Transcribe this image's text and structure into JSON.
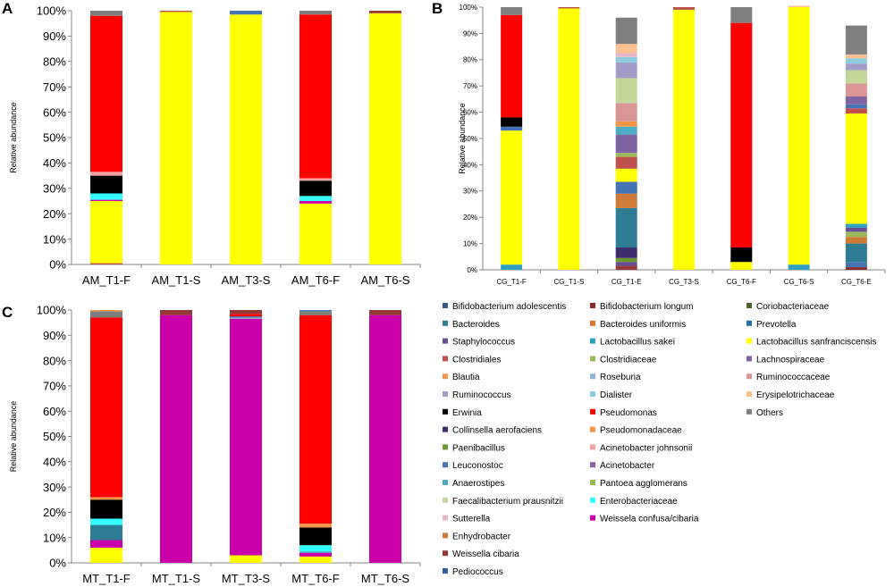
{
  "colors": {
    "Bifidobacterium adolescentis": "#365c8d",
    "Bacteroides": "#2f7c95",
    "Staphylococcus": "#6a4c93",
    "Clostridiales": "#c0504d",
    "Blautia": "#f79646",
    "Ruminococcus": "#a29dc8",
    "Erwinia": "#000000",
    "Collinsella aerofaciens": "#3f2a6b",
    "Paenibacillus": "#6a9a2f",
    "Leuconostoc": "#4474b4",
    "Anaerostipes": "#4bacc6",
    "Faecalibacterium prausnitzii": "#c4d79b",
    "Sutterella": "#e6b9c8",
    "Enhydrobacter": "#d07a38",
    "Weissella cibaria": "#953735",
    "Pediococcus": "#2e5fa1",
    "Bifidobacterium longum": "#8b2a2a",
    "Bacteroides uniformis": "#d9772e",
    "Lactobacillus sakei": "#31a0c0",
    "Clostridiaceae": "#9bbb59",
    "Roseburia": "#95b3d7",
    "Dialister": "#8ccbe0",
    "Pseudomonas": "#ff0000",
    "Pseudomonadaceae": "#f79646",
    "Acinetobacter johnsonii": "#f2a0a0",
    "Acinetobacter": "#7f5fa8",
    "Pantoea agglomerans": "#9bbb59",
    "Enterobacteriaceae": "#33ffff",
    "Weissela confusa/cibaria": "#cc00aa",
    "Coriobacteriaceae": "#4f6228",
    "Prevotella": "#1f6ca8",
    "Lactobacillus sanfranciscensis": "#ffff00",
    "Lachnospiraceae": "#8064a2",
    "Ruminococcaceae": "#da9694",
    "Erysipelotrichaceae": "#fabf8f",
    "Others": "#7f7f7f"
  },
  "legend": {
    "items": [
      "Bifidobacterium adolescentis",
      "Bifidobacterium longum",
      "Coriobacteriaceae",
      "Bacteroides",
      "Bacteroides uniformis",
      "Prevotella",
      "Staphylococcus",
      "Lactobacillus sakei",
      "Lactobacillus sanfranciscensis",
      "Clostridiales",
      "Clostridiaceae",
      "Lachnospiraceae",
      "Blautia",
      "Roseburia",
      "Ruminococcaceae",
      "Ruminococcus",
      "Dialister",
      "Erysipelotrichaceae",
      "Erwinia",
      "Pseudomonas",
      "Others",
      "Collinsella aerofaciens",
      "Pseudomonadaceae",
      "Paenibacillus",
      "Acinetobacter johnsonii",
      "Leuconostoc",
      "Acinetobacter",
      "Anaerostipes",
      "Pantoea agglomerans",
      "Faecalibacterium prausnitzii",
      "Enterobacteriaceae",
      "Sutterella",
      "Weissela confusa/cibaria",
      "Enhydrobacter",
      "Weissella cibaria",
      "Pediococcus"
    ]
  },
  "chart_data": [
    {
      "panel": "A",
      "type": "bar",
      "stacked": true,
      "ylabel": "Relative abundance",
      "ylim": [
        0,
        100
      ],
      "yticks": [
        "0%",
        "10%",
        "20%",
        "30%",
        "40%",
        "50%",
        "60%",
        "70%",
        "80%",
        "90%",
        "100%"
      ],
      "categories": [
        "AM_T1-F",
        "AM_T1-S",
        "AM_T3-S",
        "AM_T6-F",
        "AM_T6-S"
      ],
      "bars": [
        [
          [
            "Clostridiales",
            0.5
          ],
          [
            "Lactobacillus sanfranciscensis",
            24.5
          ],
          [
            "Weissela confusa/cibaria",
            0.5
          ],
          [
            "Enterobacteriaceae",
            2.5
          ],
          [
            "Erwinia",
            7
          ],
          [
            "Acinetobacter johnsonii",
            1.5
          ],
          [
            "Pseudomonas",
            61.5
          ],
          [
            "Others",
            2
          ]
        ],
        [
          [
            "Lactobacillus sanfranciscensis",
            99.5
          ],
          [
            "Clostridiales",
            0.5
          ]
        ],
        [
          [
            "Lactobacillus sanfranciscensis",
            98.5
          ],
          [
            "Leuconostoc",
            1.5
          ]
        ],
        [
          [
            "Lactobacillus sanfranciscensis",
            24
          ],
          [
            "Weissela confusa/cibaria",
            1
          ],
          [
            "Enterobacteriaceae",
            2
          ],
          [
            "Erwinia",
            6
          ],
          [
            "Acinetobacter johnsonii",
            1
          ],
          [
            "Pseudomonas",
            64.5
          ],
          [
            "Others",
            1.5
          ]
        ],
        [
          [
            "Lactobacillus sanfranciscensis",
            99
          ],
          [
            "Weissella cibaria",
            1
          ]
        ]
      ]
    },
    {
      "panel": "B",
      "type": "bar",
      "stacked": true,
      "ylabel": "Relative abundance",
      "ylim": [
        0,
        100
      ],
      "yticks": [
        "0%",
        "10%",
        "20%",
        "30%",
        "40%",
        "50%",
        "60%",
        "70%",
        "80%",
        "90%",
        "100%"
      ],
      "categories": [
        "CG_T1-F",
        "CG_T1-S",
        "CG_T1-E",
        "CG_T3-S",
        "CG_T6-F",
        "CG_T6-S",
        "CG_T6-E"
      ],
      "bars": [
        [
          [
            "Lactobacillus sakei",
            2
          ],
          [
            "Lactobacillus sanfranciscensis",
            51
          ],
          [
            "Leuconostoc",
            1.5
          ],
          [
            "Erwinia",
            3.5
          ],
          [
            "Pseudomonas",
            39
          ],
          [
            "Others",
            3
          ]
        ],
        [
          [
            "Lactobacillus sanfranciscensis",
            99.5
          ],
          [
            "Clostridiales",
            0.5
          ]
        ],
        [
          [
            "Weissella cibaria",
            1.5
          ],
          [
            "Staphylococcus",
            1.5
          ],
          [
            "Paenibacillus",
            1.5
          ],
          [
            "Collinsella aerofaciens",
            4
          ],
          [
            "Bacteroides",
            15
          ],
          [
            "Enhydrobacter",
            5.5
          ],
          [
            "Leuconostoc",
            4.5
          ],
          [
            "Lactobacillus sanfranciscensis",
            5
          ],
          [
            "Clostridiales",
            4.5
          ],
          [
            "Clostridiaceae",
            1.5
          ],
          [
            "Lachnospiraceae",
            7
          ],
          [
            "Anaerostipes",
            3
          ],
          [
            "Blautia",
            2
          ],
          [
            "Ruminococcaceae",
            7
          ],
          [
            "Faecalibacterium prausnitzii",
            9.5
          ],
          [
            "Ruminococcus",
            6
          ],
          [
            "Dialister",
            2
          ],
          [
            "Sutterella",
            1.5
          ],
          [
            "Erysipelotrichaceae",
            3.5
          ],
          [
            "Others",
            10
          ]
        ],
        [
          [
            "Lactobacillus sanfranciscensis",
            99
          ],
          [
            "Clostridiales",
            1
          ]
        ],
        [
          [
            "Lactobacillus sanfranciscensis",
            3
          ],
          [
            "Erwinia",
            5.5
          ],
          [
            "Pseudomonas",
            85.5
          ],
          [
            "Others",
            6
          ]
        ],
        [
          [
            "Lactobacillus sakei",
            2
          ],
          [
            "Lactobacillus sanfranciscensis",
            98
          ],
          [
            "Erysipelotrichaceae",
            0.5
          ]
        ],
        [
          [
            "Bifidobacterium longum",
            1
          ],
          [
            "Leuconostoc",
            2
          ],
          [
            "Bacteroides",
            7
          ],
          [
            "Enhydrobacter",
            2.5
          ],
          [
            "Pantoea agglomerans",
            2
          ],
          [
            "Staphylococcus",
            1.5
          ],
          [
            "Lactobacillus sakei",
            1.5
          ],
          [
            "Lactobacillus sanfranciscensis",
            42
          ],
          [
            "Clostridiales",
            2
          ],
          [
            "Leuconostoc",
            1.5
          ],
          [
            "Lachnospiraceae",
            3
          ],
          [
            "Ruminococcaceae",
            5
          ],
          [
            "Faecalibacterium prausnitzii",
            5
          ],
          [
            "Ruminococcus",
            2.5
          ],
          [
            "Dialister",
            2
          ],
          [
            "Erysipelotrichaceae",
            1.5
          ],
          [
            "Others",
            11
          ]
        ]
      ]
    },
    {
      "panel": "C",
      "type": "bar",
      "stacked": true,
      "ylabel": "Relative abundance",
      "ylim": [
        0,
        100
      ],
      "yticks": [
        "0%",
        "10%",
        "20%",
        "30%",
        "40%",
        "50%",
        "60%",
        "70%",
        "80%",
        "90%",
        "100%"
      ],
      "categories": [
        "MT_T1-F",
        "MT_T1-S",
        "MT_T3-S",
        "MT_T6-F",
        "MT_T6-S"
      ],
      "bars": [
        [
          [
            "Lactobacillus sanfranciscensis",
            6
          ],
          [
            "Weissela confusa/cibaria",
            3
          ],
          [
            "Bacteroides",
            6
          ],
          [
            "Enterobacteriaceae",
            2.5
          ],
          [
            "Erwinia",
            7.5
          ],
          [
            "Pseudomonadaceae",
            1
          ],
          [
            "Pseudomonas",
            71
          ],
          [
            "Others",
            2.5
          ],
          [
            "Blautia",
            0.5
          ]
        ],
        [
          [
            "Weissela confusa/cibaria",
            98
          ],
          [
            "Weissella cibaria",
            2
          ]
        ],
        [
          [
            "Lactobacillus sanfranciscensis",
            3
          ],
          [
            "Weissela confusa/cibaria",
            93.5
          ],
          [
            "Ruminococcus",
            0.5
          ],
          [
            "Leuconostoc",
            0.5
          ],
          [
            "Pseudomonas",
            1
          ],
          [
            "Weissella cibaria",
            1.5
          ]
        ],
        [
          [
            "Lactobacillus sanfranciscensis",
            2.5
          ],
          [
            "Weissela confusa/cibaria",
            1.5
          ],
          [
            "Lactobacillus sakei",
            0.5
          ],
          [
            "Enterobacteriaceae",
            2.5
          ],
          [
            "Erwinia",
            7
          ],
          [
            "Pseudomonadaceae",
            1.5
          ],
          [
            "Pseudomonas",
            82.5
          ],
          [
            "Others",
            1.5
          ],
          [
            "Leuconostoc",
            0.5
          ]
        ],
        [
          [
            "Weissela confusa/cibaria",
            98
          ],
          [
            "Weissella cibaria",
            2
          ]
        ]
      ]
    }
  ]
}
